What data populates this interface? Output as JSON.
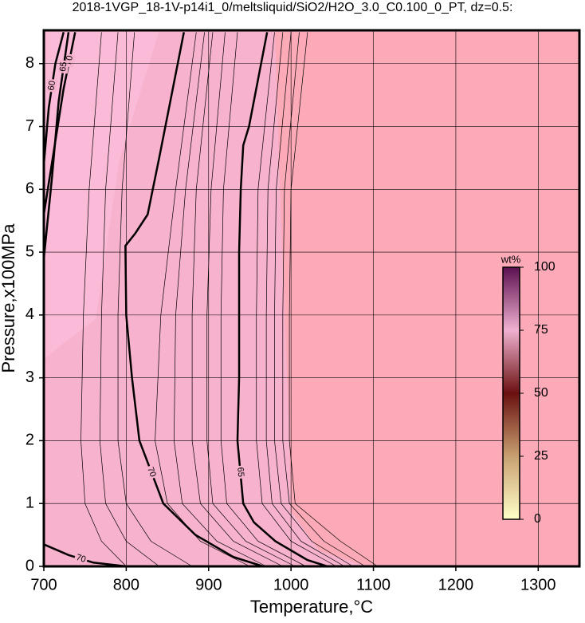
{
  "chart_data": {
    "type": "contour",
    "title": "2018-1VGP_18-1V-p14i1_0/meltsliquid/SiO2/H2O_3.0_C0.100_0_PT, dz=0.5:",
    "x_label": "Temperature,°C",
    "y_label": "Pressure,x100MPa",
    "xlim": [
      700,
      1350
    ],
    "ylim": [
      0,
      8.53
    ],
    "xticks": [
      700,
      800,
      900,
      1000,
      1100,
      1200,
      1300
    ],
    "yticks": [
      0,
      1,
      2,
      3,
      4,
      5,
      6,
      7,
      8
    ],
    "grid": true,
    "line_color": "#000000",
    "contours": [
      {
        "level": 70,
        "x": [
          870,
          855,
          840,
          826,
          811,
          799,
          800,
          807,
          816,
          845,
          884,
          930,
          966
        ],
        "y": [
          8.5,
          7.5,
          6.5,
          5.6,
          5.3,
          5.1,
          4,
          3,
          2,
          1,
          0.5,
          0.15,
          0
        ]
      },
      {
        "level": 65,
        "x": [
          971,
          949,
          942,
          939,
          937,
          937,
          935,
          942,
          955,
          981,
          1020,
          1044
        ],
        "y": [
          8.5,
          7,
          6.7,
          6,
          5,
          3,
          2,
          1,
          0.7,
          0.4,
          0.1,
          0
        ]
      },
      {
        "level": 70,
        "x": [
          700,
          712,
          724,
          738
        ],
        "y": [
          5.6,
          6.6,
          7.6,
          8.5
        ]
      },
      {
        "level": 65,
        "x": [
          700,
          710,
          718,
          730
        ],
        "y": [
          4.9,
          6.2,
          7.4,
          8.5
        ]
      },
      {
        "level": 60,
        "x": [
          700,
          706,
          714,
          724
        ],
        "y": [
          6.4,
          7.3,
          8,
          8.5
        ]
      },
      {
        "level": 70,
        "x": [
          700,
          730,
          760,
          800
        ],
        "y": [
          0.35,
          0.18,
          0.06,
          0
        ]
      }
    ],
    "contour_p": [
      8.5,
      6,
      4,
      2,
      1,
      0.4,
      0
    ],
    "thin_contours": [
      [
        770,
        755,
        748,
        745,
        750,
        770,
        800
      ],
      [
        790,
        775,
        770,
        768,
        775,
        800,
        840
      ],
      [
        810,
        795,
        790,
        790,
        800,
        830,
        880
      ],
      [
        885,
        860,
        842,
        835,
        850,
        890,
        950
      ],
      [
        895,
        872,
        860,
        858,
        868,
        910,
        970
      ],
      [
        905,
        885,
        880,
        880,
        890,
        930,
        990
      ],
      [
        920,
        903,
        898,
        898,
        905,
        945,
        1005
      ],
      [
        935,
        918,
        915,
        915,
        922,
        960,
        1018
      ],
      [
        980,
        960,
        958,
        958,
        965,
        1000,
        1055
      ],
      [
        990,
        972,
        970,
        970,
        977,
        1012,
        1065
      ],
      [
        1000,
        982,
        980,
        980,
        988,
        1025,
        1075
      ],
      [
        1010,
        992,
        990,
        990,
        998,
        1040,
        1090
      ],
      [
        1020,
        1000,
        998,
        998,
        1005,
        1060,
        1105
      ]
    ],
    "colorbar": {
      "label": "wt%",
      "lim": [
        0,
        100
      ],
      "ticks": [
        0,
        25,
        50,
        75,
        100
      ],
      "colors": [
        "#ffffc8",
        "#c8a070",
        "#6a1010",
        "#f0b0d0",
        "#5a1050"
      ]
    }
  }
}
